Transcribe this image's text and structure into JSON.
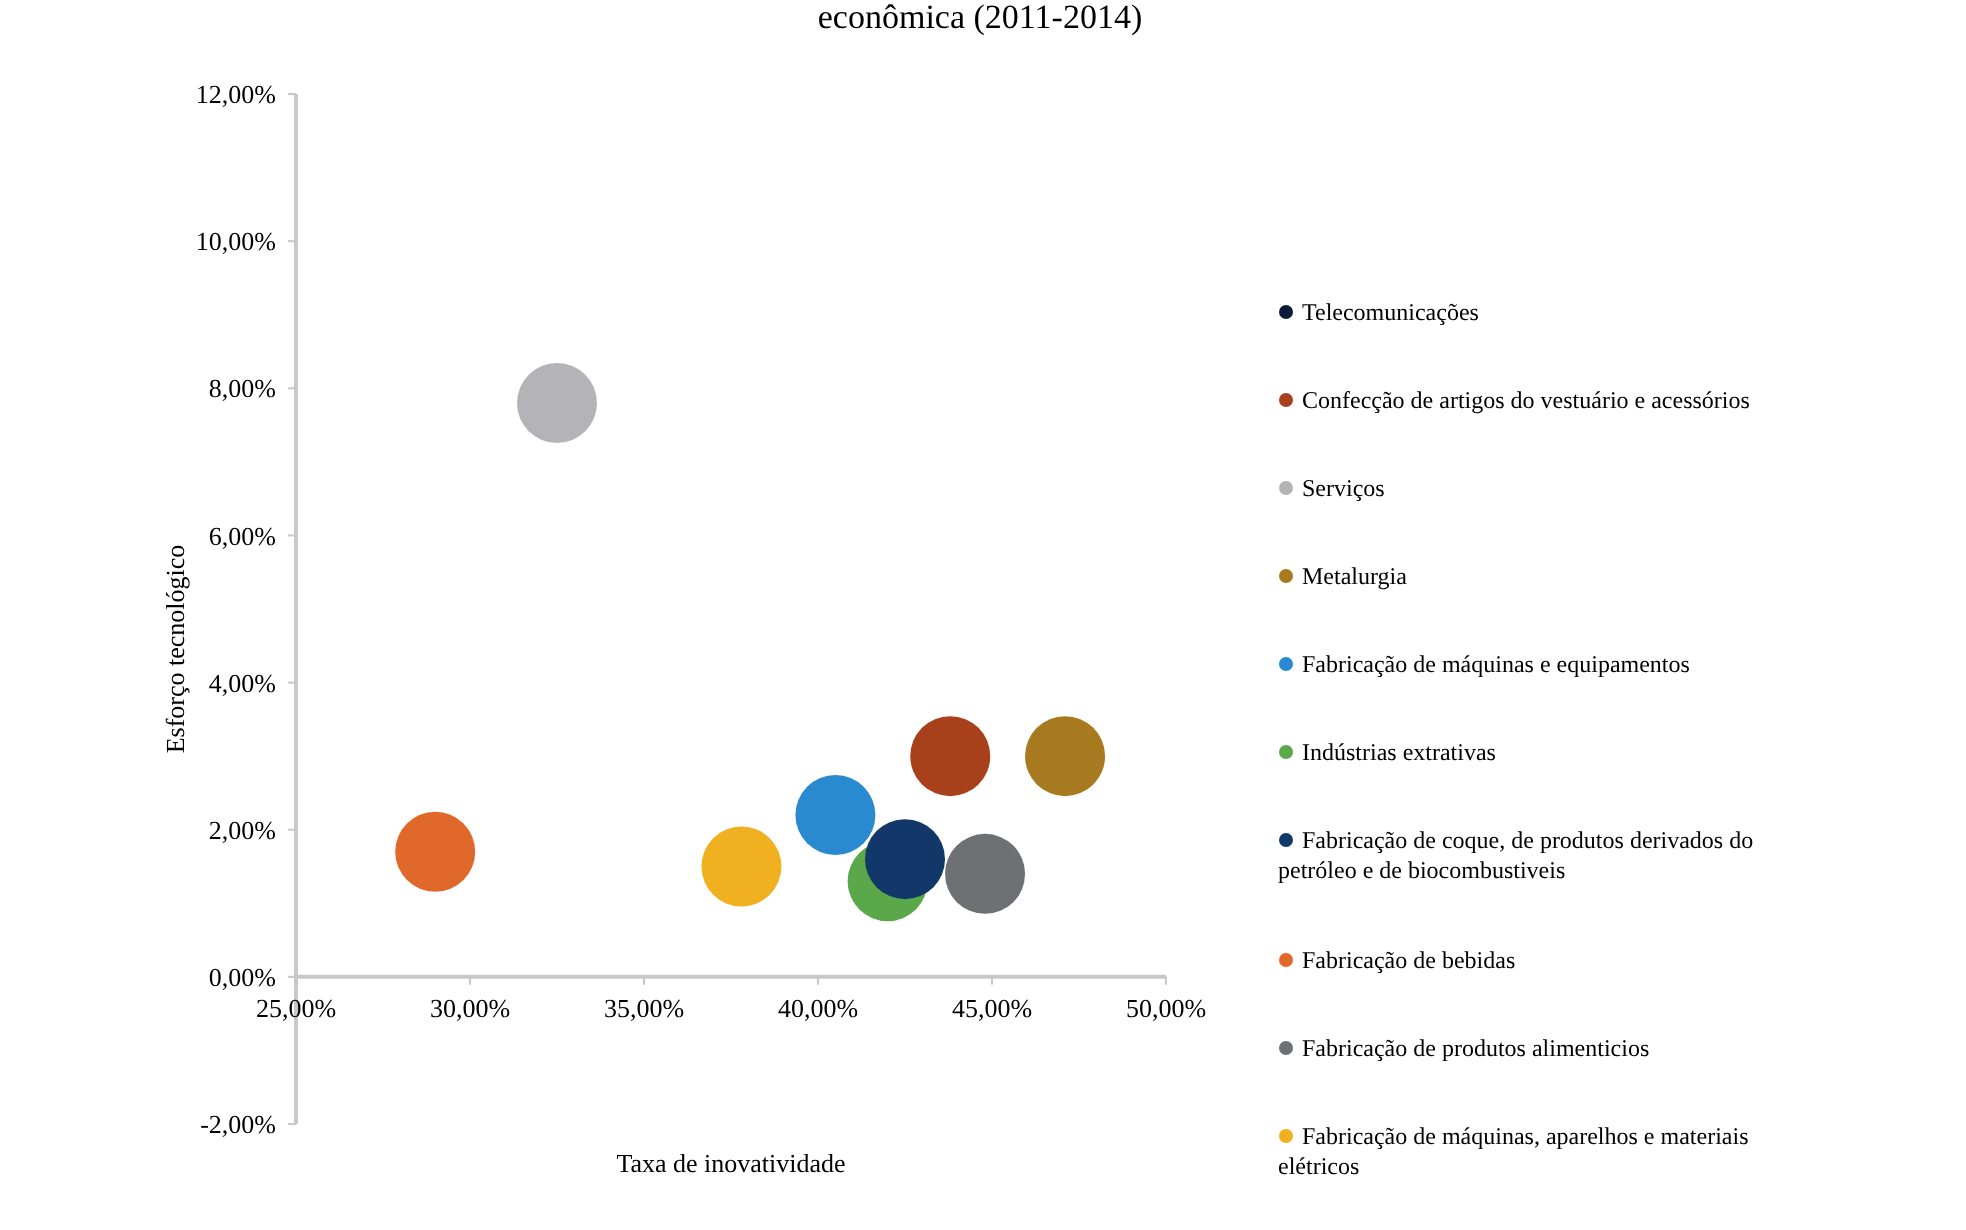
{
  "chart_data": {
    "type": "scatter",
    "marker": "circle",
    "title": "econômica (2011-2014)",
    "xlabel": "Taxa de inovatividade",
    "ylabel": "Esforço tecnológico",
    "xlim": [
      25,
      50
    ],
    "ylim": [
      -2,
      12
    ],
    "xticks": [
      {
        "value": 25,
        "label": "25,00%"
      },
      {
        "value": 30,
        "label": "30,00%"
      },
      {
        "value": 35,
        "label": "35,00%"
      },
      {
        "value": 40,
        "label": "40,00%"
      },
      {
        "value": 45,
        "label": "45,00%"
      },
      {
        "value": 50,
        "label": "50,00%"
      }
    ],
    "yticks": [
      {
        "value": -2,
        "label": "-2,00%"
      },
      {
        "value": 0,
        "label": "0,00%"
      },
      {
        "value": 2,
        "label": "2,00%"
      },
      {
        "value": 4,
        "label": "4,00%"
      },
      {
        "value": 6,
        "label": "6,00%"
      },
      {
        "value": 8,
        "label": "8,00%"
      },
      {
        "value": 10,
        "label": "10,00%"
      },
      {
        "value": 12,
        "label": "12,00%"
      }
    ],
    "legend": "right",
    "grid": false,
    "series": [
      {
        "name": "Telecomunicações",
        "color": "#0d1a3a",
        "x": [
          null
        ],
        "values": [
          null
        ]
      },
      {
        "name": "Confecção de artigos do vestuário e acessórios",
        "color": "#a8401c",
        "x": [
          43.8
        ],
        "values": [
          3.0
        ]
      },
      {
        "name": "Serviços",
        "color": "#b4b4b8",
        "x": [
          32.5
        ],
        "values": [
          7.8
        ]
      },
      {
        "name": "Metalurgia",
        "color": "#a87a20",
        "x": [
          47.1
        ],
        "values": [
          3.0
        ]
      },
      {
        "name": "Fabricação de máquinas e equipamentos",
        "color": "#2a8ad0",
        "x": [
          40.5
        ],
        "values": [
          2.2
        ]
      },
      {
        "name": "Indústrias extrativas",
        "color": "#5aa84a",
        "x": [
          42.0
        ],
        "values": [
          1.3
        ]
      },
      {
        "name": "Fabricação de coque, de produtos derivados do petróleo e de biocombustiveis",
        "color": "#12386a",
        "x": [
          42.5
        ],
        "values": [
          1.6
        ]
      },
      {
        "name": "Fabricação de bebidas",
        "color": "#e0682a",
        "x": [
          29.0
        ],
        "values": [
          1.7
        ]
      },
      {
        "name": "Fabricação de produtos alimenticios",
        "color": "#6e7074",
        "x": [
          44.8
        ],
        "values": [
          1.4
        ]
      },
      {
        "name": "Fabricação de máquinas, aparelhos e materiais elétricos",
        "color": "#f0b020",
        "x": [
          37.8
        ],
        "values": [
          1.5
        ]
      }
    ]
  }
}
